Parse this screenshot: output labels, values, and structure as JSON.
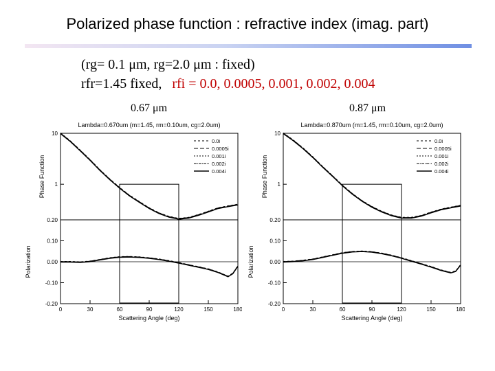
{
  "slide": {
    "title": "Polarized phase function : refractive index (imag. part)",
    "param_line1": "(rg= 0.1 μm,  rg=2.0 μm : fixed)",
    "param_line2_black": "rfr=1.45 fixed,",
    "param_line2_red": "rfi = 0.0, 0.0005, 0.001, 0.002, 0.004"
  },
  "chart_data": [
    {
      "type": "line",
      "wavelength_label": "0.67 μm",
      "header": "Lambda=0.670um (m=1.45, rm=0.10um, cg=2.0um)",
      "xlabel": "Scattering Angle (deg)",
      "x_ticks": [
        "0",
        "30",
        "60",
        "90",
        "120",
        "150",
        "180"
      ],
      "xlim": [
        0,
        180
      ],
      "legend": [
        "0.0i",
        "0.0005i",
        "0.001i",
        "0.002i",
        "0.004i"
      ],
      "legend_position": "top-right",
      "top_panel": {
        "ylabel": "Phase Function",
        "scale": "log",
        "ylim": [
          0.2,
          10
        ],
        "y_ticks": [
          "10",
          "1",
          "0.20"
        ],
        "x": [
          0,
          10,
          20,
          30,
          40,
          50,
          60,
          70,
          80,
          90,
          100,
          110,
          120,
          130,
          140,
          150,
          160,
          170,
          180
        ],
        "values": [
          10,
          7.0,
          4.6,
          3.0,
          1.9,
          1.25,
          0.85,
          0.6,
          0.45,
          0.34,
          0.27,
          0.23,
          0.21,
          0.22,
          0.25,
          0.29,
          0.34,
          0.37,
          0.4
        ]
      },
      "bottom_panel": {
        "ylabel": "Polarization",
        "ylim": [
          -0.2,
          0.2
        ],
        "y_ticks": [
          "0.10",
          "0.00",
          "-0.10",
          "-0.20"
        ],
        "x": [
          0,
          10,
          20,
          30,
          40,
          50,
          60,
          70,
          80,
          90,
          100,
          110,
          120,
          130,
          140,
          150,
          160,
          170,
          175,
          180
        ],
        "values": [
          0.0,
          0.0,
          -0.002,
          0.002,
          0.01,
          0.018,
          0.023,
          0.024,
          0.022,
          0.018,
          0.012,
          0.004,
          -0.005,
          -0.015,
          -0.025,
          -0.035,
          -0.05,
          -0.07,
          -0.055,
          -0.02
        ]
      },
      "highlight_box_x": [
        60,
        120
      ]
    },
    {
      "type": "line",
      "wavelength_label": "0.87 μm",
      "header": "Lambda=0.870um (m=1.45, rm=0.10um, cg=2.0um)",
      "xlabel": "Scattering Angle (deg)",
      "x_ticks": [
        "0",
        "30",
        "60",
        "90",
        "120",
        "150",
        "180"
      ],
      "xlim": [
        0,
        180
      ],
      "legend": [
        "0.0i",
        "0.0005i",
        "0.001i",
        "0.002i",
        "0.004i"
      ],
      "legend_position": "top-right",
      "top_panel": {
        "ylabel": "Phase Function",
        "scale": "log",
        "ylim": [
          0.2,
          10
        ],
        "y_ticks": [
          "10",
          "1",
          "0.20"
        ],
        "x": [
          0,
          10,
          20,
          30,
          40,
          50,
          60,
          70,
          80,
          90,
          100,
          110,
          120,
          130,
          140,
          150,
          160,
          170,
          180
        ],
        "values": [
          10,
          7.3,
          5.1,
          3.4,
          2.2,
          1.45,
          0.95,
          0.65,
          0.47,
          0.36,
          0.29,
          0.245,
          0.22,
          0.22,
          0.24,
          0.28,
          0.32,
          0.35,
          0.38
        ]
      },
      "bottom_panel": {
        "ylabel": "Polarization",
        "ylim": [
          -0.2,
          0.2
        ],
        "y_ticks": [
          "0.10",
          "0.00",
          "-0.10",
          "-0.20"
        ],
        "x": [
          0,
          10,
          20,
          30,
          40,
          50,
          60,
          70,
          80,
          90,
          100,
          110,
          120,
          130,
          140,
          150,
          160,
          170,
          175,
          180
        ],
        "values": [
          0.0,
          0.002,
          0.006,
          0.012,
          0.022,
          0.032,
          0.042,
          0.048,
          0.05,
          0.047,
          0.04,
          0.03,
          0.018,
          0.004,
          -0.01,
          -0.024,
          -0.04,
          -0.052,
          -0.045,
          -0.015
        ]
      },
      "highlight_box_x": [
        60,
        120
      ]
    }
  ]
}
